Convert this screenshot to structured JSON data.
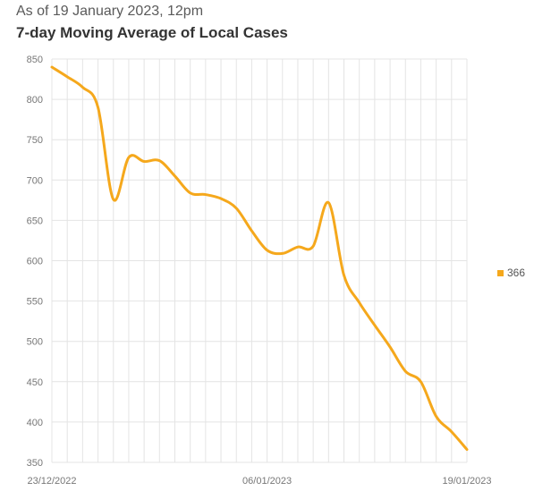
{
  "header": {
    "subtitle": "As of 19 January 2023, 12pm",
    "title": "7-day Moving Average of Local Cases"
  },
  "colors": {
    "series": "#F5A81C",
    "grid": "#e4e4e4"
  },
  "chart_data": {
    "type": "line",
    "title": "7-day Moving Average of Local Cases",
    "subtitle": "As of 19 January 2023, 12pm",
    "xlabel": "",
    "ylabel": "",
    "x_tick_labels": [
      "23/12/2022",
      "06/01/2023",
      "19/01/2023"
    ],
    "x_tick_indices": [
      0,
      14,
      27
    ],
    "ylim": [
      350,
      850
    ],
    "y_ticks": [
      350,
      400,
      450,
      500,
      550,
      600,
      650,
      700,
      750,
      800,
      850
    ],
    "grid": true,
    "legend_position": "right",
    "x": [
      "23/12/2022",
      "24/12/2022",
      "25/12/2022",
      "26/12/2022",
      "27/12/2022",
      "28/12/2022",
      "29/12/2022",
      "30/12/2022",
      "31/12/2022",
      "01/01/2023",
      "02/01/2023",
      "03/01/2023",
      "04/01/2023",
      "05/01/2023",
      "06/01/2023",
      "07/01/2023",
      "08/01/2023",
      "09/01/2023",
      "10/01/2023",
      "11/01/2023",
      "12/01/2023",
      "13/01/2023",
      "14/01/2023",
      "15/01/2023",
      "16/01/2023",
      "17/01/2023",
      "18/01/2023",
      "19/01/2023"
    ],
    "series": [
      {
        "name": "366",
        "values": [
          840,
          828,
          815,
          790,
          676,
          728,
          723,
          724,
          705,
          684,
          682,
          677,
          665,
          637,
          613,
          609,
          617,
          618,
          672,
          582,
          548,
          520,
          493,
          463,
          450,
          407,
          388,
          366
        ]
      }
    ]
  }
}
